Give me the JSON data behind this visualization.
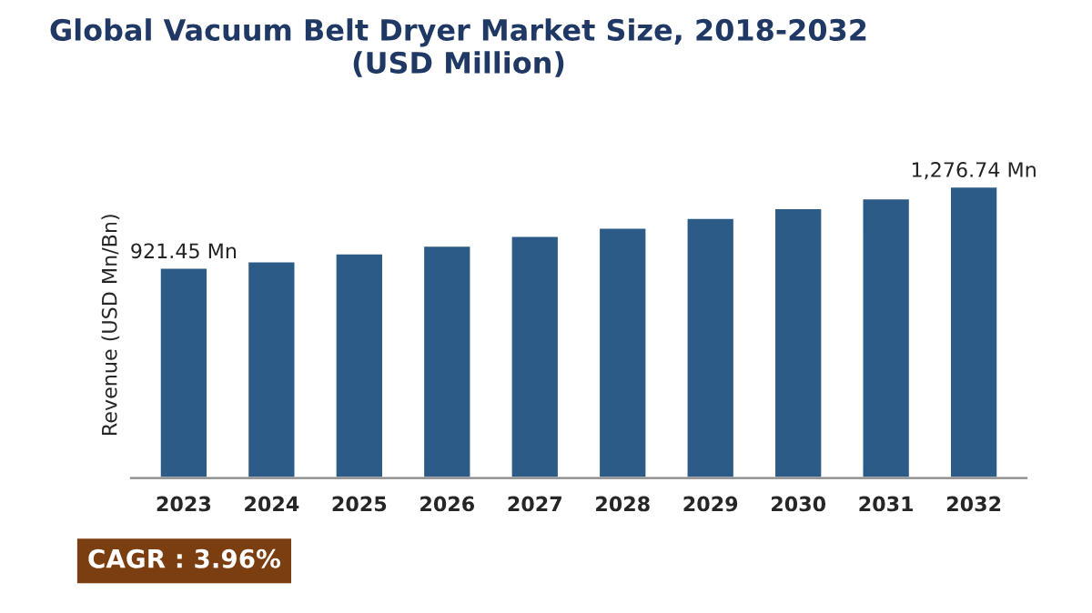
{
  "chart_data": {
    "type": "bar",
    "title": "Global Vacuum Belt Dryer Market Size, 2018-2032\n(USD Million)",
    "ylabel": "Revenue (USD Mn/Bn)",
    "categories": [
      "2023",
      "2024",
      "2025",
      "2026",
      "2027",
      "2028",
      "2029",
      "2030",
      "2031",
      "2032"
    ],
    "values": [
      921.45,
      949,
      984,
      1018,
      1061,
      1096,
      1139,
      1182,
      1225,
      1276.74
    ],
    "value_labels": [
      "921.45 Mn",
      null,
      null,
      null,
      null,
      null,
      null,
      null,
      null,
      "1,276.74 Mn"
    ],
    "color": "#2b5b86",
    "annotations": [
      "CAGR : 3.96%"
    ],
    "grid": false,
    "legend": false
  }
}
